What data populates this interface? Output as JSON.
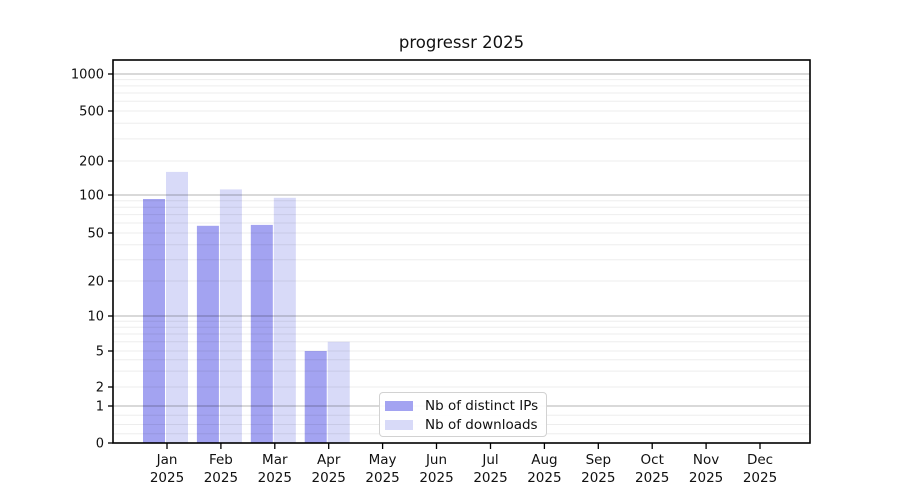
{
  "window": {
    "background": "#ffffff"
  },
  "chart_data": {
    "type": "bar",
    "title": "progressr 2025",
    "categories": [
      "Jan 2025",
      "Feb 2025",
      "Mar 2025",
      "Apr 2025",
      "May 2025",
      "Jun 2025",
      "Jul 2025",
      "Aug 2025",
      "Sep 2025",
      "Oct 2025",
      "Nov 2025",
      "Dec 2025"
    ],
    "series": [
      {
        "name": "Nb of distinct IPs",
        "color": "#a3a3f1",
        "values": [
          93,
          57,
          58,
          5,
          0,
          0,
          0,
          0,
          0,
          0,
          0,
          0
        ]
      },
      {
        "name": "Nb of downloads",
        "color": "#d8daf8",
        "values": [
          160,
          112,
          95,
          6,
          0,
          0,
          0,
          0,
          0,
          0,
          0,
          0
        ]
      }
    ],
    "xlabel": "",
    "ylabel": "",
    "yscale": "symlog",
    "yticks": [
      0,
      1,
      2,
      5,
      10,
      20,
      50,
      100,
      200,
      500,
      1000
    ],
    "ylim": [
      0,
      1400
    ],
    "grid": "horizontal major+minor, drawn over bars",
    "legend_position": "inside lower-center-left",
    "colors": {
      "major_grid": "rgba(0,0,0,0.24)",
      "minor_grid": "rgba(0,0,0,0.07)",
      "spine": "#000000",
      "text": "#111111"
    }
  }
}
